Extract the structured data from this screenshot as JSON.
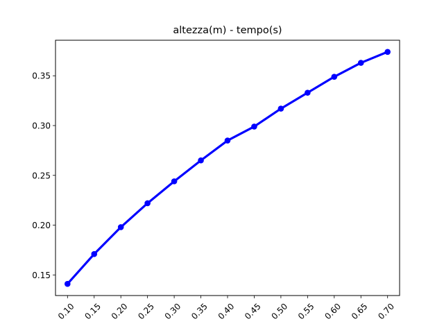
{
  "chart_data": {
    "type": "line",
    "title": "altezza(m) - tempo(s)",
    "xlabel": "",
    "ylabel": "",
    "x": [
      0.1,
      0.15,
      0.2,
      0.25,
      0.3,
      0.35,
      0.4,
      0.45,
      0.5,
      0.55,
      0.6,
      0.65,
      0.7
    ],
    "x_tick_labels": [
      "0.10",
      "0.15",
      "0.20",
      "0.25",
      "0.30",
      "0.35",
      "0.40",
      "0.45",
      "0.50",
      "0.55",
      "0.60",
      "0.65",
      "0.70"
    ],
    "series": [
      {
        "values": [
          0.141,
          0.171,
          0.198,
          0.222,
          0.244,
          0.265,
          0.285,
          0.299,
          0.317,
          0.333,
          0.349,
          0.363,
          0.374
        ],
        "color": "#0000ff",
        "marker": "circle"
      }
    ],
    "y_ticks": [
      0.15,
      0.2,
      0.25,
      0.3,
      0.35
    ],
    "y_tick_labels": [
      "0.15",
      "0.20",
      "0.25",
      "0.30",
      "0.35"
    ],
    "xlim": [
      0.0775,
      0.7225
    ],
    "ylim": [
      0.1293,
      0.3857
    ],
    "grid": false,
    "x_tick_rotation": 45
  }
}
